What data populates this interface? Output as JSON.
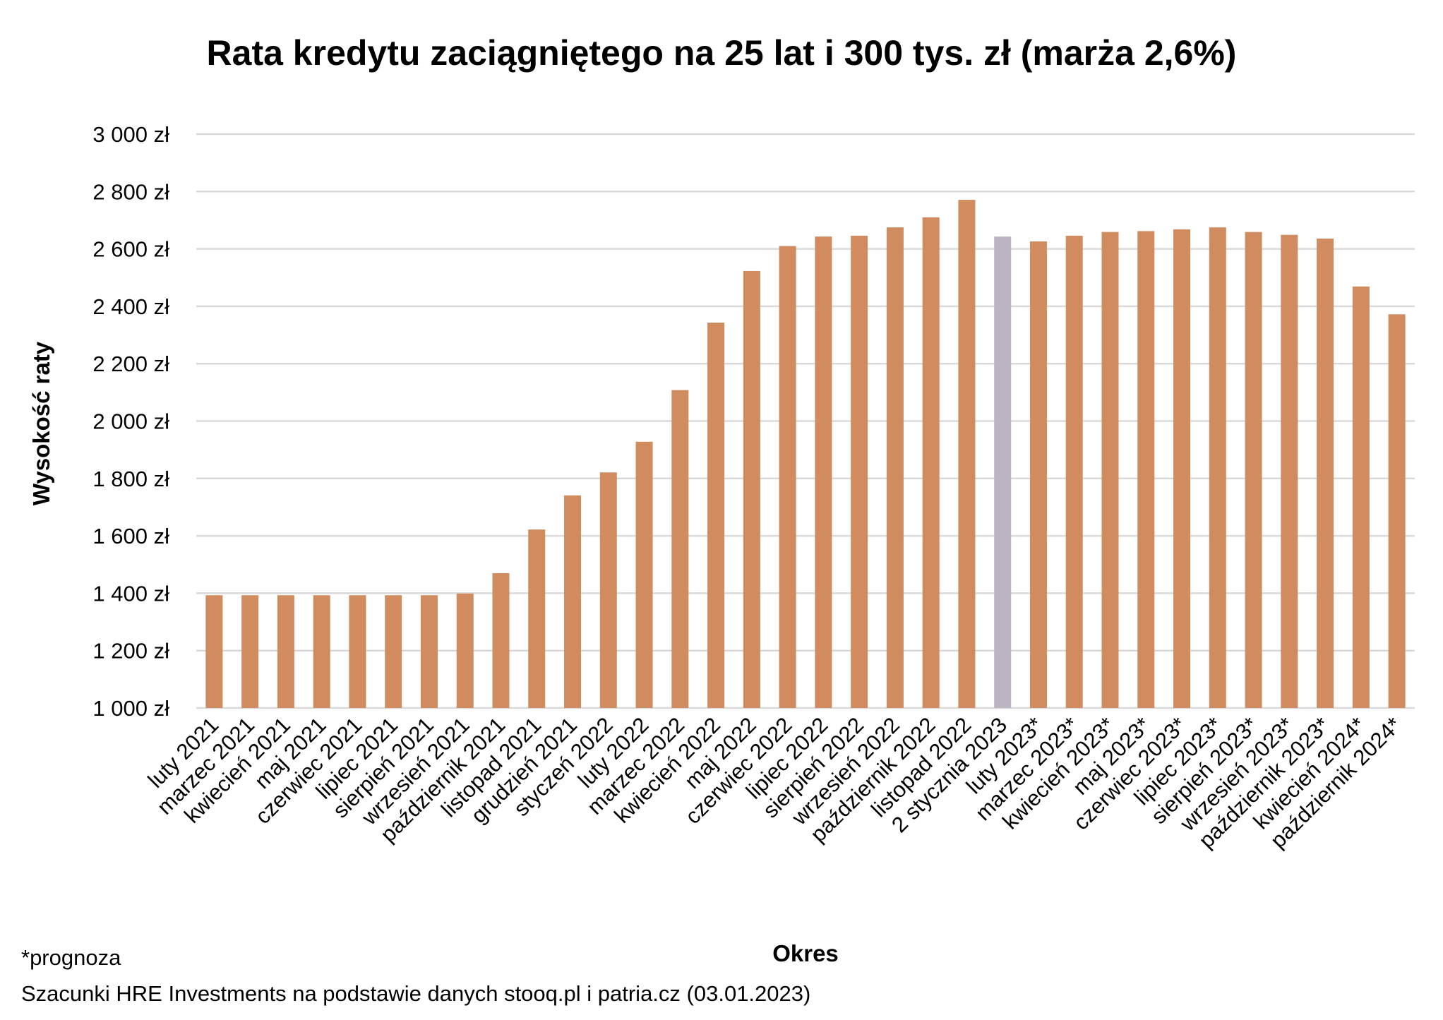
{
  "chart_data": {
    "type": "bar",
    "title": "Rata kredytu zaciągniętego na 25 lat i 300 tys. zł (marża 2,6%)",
    "xlabel": "Okres",
    "ylabel": "Wysokość raty",
    "ylim": [
      1000,
      3000
    ],
    "yticks": [
      1000,
      1200,
      1400,
      1600,
      1800,
      2000,
      2200,
      2400,
      2600,
      2800,
      3000
    ],
    "ytick_labels": [
      "1 000 zł",
      "1 200 zł",
      "1 400 zł",
      "1 600 zł",
      "1 800 zł",
      "2 000 zł",
      "2 200 zł",
      "2 400 zł",
      "2 600 zł",
      "2 800 zł",
      "3 000 zł"
    ],
    "grid": true,
    "legend": "none",
    "categories": [
      "luty 2021",
      "marzec 2021",
      "kwiecień 2021",
      "maj 2021",
      "czerwiec 2021",
      "lipiec 2021",
      "sierpień 2021",
      "wrzesień 2021",
      "październik 2021",
      "listopad 2021",
      "grudzień 2021",
      "styczeń 2022",
      "luty 2022",
      "marzec 2022",
      "kwiecień 2022",
      "maj 2022",
      "czerwiec 2022",
      "lipiec 2022",
      "sierpień 2022",
      "wrzesień 2022",
      "październik 2022",
      "listopad 2022",
      "2 stycznia 2023",
      "luty 2023*",
      "marzec 2023*",
      "kwiecień 2023*",
      "maj 2023*",
      "czerwiec 2023*",
      "lipiec 2023*",
      "sierpień 2023*",
      "wrzesień 2023*",
      "październik 2023*",
      "kwiecień 2024*",
      "październik 2024*"
    ],
    "values": [
      1393,
      1393,
      1393,
      1393,
      1393,
      1393,
      1393,
      1399,
      1470,
      1622,
      1741,
      1821,
      1928,
      2108,
      2343,
      2523,
      2610,
      2643,
      2646,
      2675,
      2710,
      2771,
      2643,
      2626,
      2646,
      2659,
      2662,
      2668,
      2675,
      2659,
      2649,
      2636,
      2469,
      2372
    ],
    "highlight_index": 22,
    "colors": {
      "bar": "#D08C5F",
      "highlight": "#BCB5C1",
      "grid": "#D9D9D9"
    }
  },
  "footnotes": {
    "forecast": "*prognoza",
    "source": "Szacunki HRE Investments na podstawie danych stooq.pl i patria.cz (03.01.2023)"
  }
}
